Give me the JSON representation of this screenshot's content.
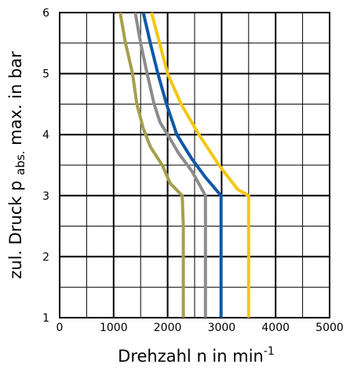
{
  "chart_data": {
    "type": "line",
    "xlabel": "Drehzahl n in min",
    "xlabel_sup": "-1",
    "ylabel_parts": [
      "zul. Druck p",
      "abs.",
      "max. in bar"
    ],
    "xlim": [
      0,
      5000
    ],
    "ylim": [
      1,
      6
    ],
    "x_ticks": [
      0,
      1000,
      2000,
      3000,
      4000,
      5000
    ],
    "y_ticks": [
      1,
      2,
      3,
      4,
      5,
      6
    ],
    "grid": true,
    "series": [
      {
        "color": "#a79e4c",
        "points": [
          [
            1120,
            6
          ],
          [
            1220,
            5.5
          ],
          [
            1350,
            5
          ],
          [
            1430,
            4.5
          ],
          [
            1550,
            4.1
          ],
          [
            1680,
            3.8
          ],
          [
            1900,
            3.5
          ],
          [
            2050,
            3.2
          ],
          [
            2270,
            3.0
          ],
          [
            2290,
            2.5
          ],
          [
            2290,
            2.0
          ],
          [
            2290,
            1.5
          ],
          [
            2290,
            1.0
          ]
        ]
      },
      {
        "color": "#8c8c8c",
        "points": [
          [
            1400,
            6
          ],
          [
            1500,
            5.5
          ],
          [
            1620,
            5
          ],
          [
            1750,
            4.5
          ],
          [
            1860,
            4.2
          ],
          [
            2000,
            4.0
          ],
          [
            2200,
            3.7
          ],
          [
            2450,
            3.4
          ],
          [
            2700,
            3.0
          ],
          [
            2700,
            2.5
          ],
          [
            2700,
            2.0
          ],
          [
            2700,
            1.5
          ],
          [
            2700,
            1.0
          ]
        ]
      },
      {
        "color": "#1058a8",
        "points": [
          [
            1550,
            6
          ],
          [
            1680,
            5.5
          ],
          [
            1820,
            5
          ],
          [
            1980,
            4.5
          ],
          [
            2170,
            4.0
          ],
          [
            2450,
            3.6
          ],
          [
            2700,
            3.3
          ],
          [
            2990,
            3.0
          ],
          [
            2990,
            2.5
          ],
          [
            2990,
            2.0
          ],
          [
            2990,
            1.5
          ],
          [
            2990,
            1.0
          ]
        ]
      },
      {
        "color": "#f5c713",
        "points": [
          [
            1700,
            6
          ],
          [
            1850,
            5.5
          ],
          [
            2000,
            5
          ],
          [
            2250,
            4.5
          ],
          [
            2580,
            4.0
          ],
          [
            2950,
            3.5
          ],
          [
            3300,
            3.1
          ],
          [
            3500,
            3.0
          ],
          [
            3500,
            2.5
          ],
          [
            3500,
            2.0
          ],
          [
            3500,
            1.5
          ],
          [
            3500,
            1.0
          ]
        ]
      }
    ]
  }
}
